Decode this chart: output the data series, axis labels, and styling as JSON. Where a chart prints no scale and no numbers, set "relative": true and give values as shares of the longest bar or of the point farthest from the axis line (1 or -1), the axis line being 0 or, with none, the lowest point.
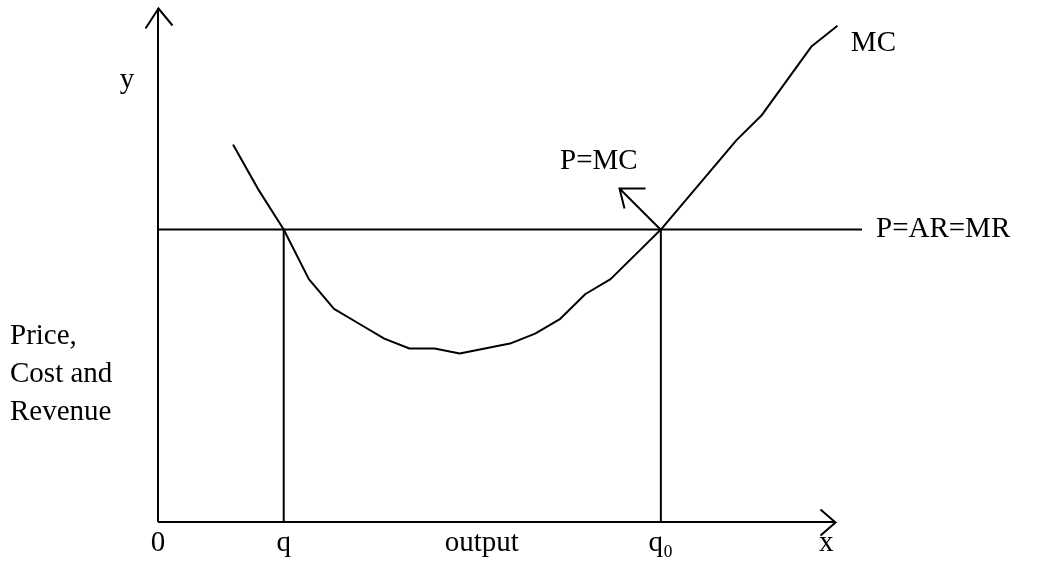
{
  "chart_data": {
    "type": "line",
    "relative": true,
    "xlabel": "output",
    "ylabel": "Price, Cost and Revenue",
    "categories": [
      "0",
      null,
      null,
      null,
      null,
      "q",
      null,
      null,
      null,
      null,
      null,
      null,
      null,
      null,
      null,
      null,
      null,
      null,
      null,
      null,
      "q₀",
      null,
      null,
      null,
      null,
      null,
      null,
      null,
      null
    ],
    "series": [
      {
        "name": "MC",
        "color": "#000000",
        "values": [
          null,
          null,
          null,
          0.76,
          0.67,
          0.59,
          0.49,
          0.43,
          0.4,
          0.37,
          0.35,
          0.35,
          0.34,
          0.35,
          0.36,
          0.38,
          0.41,
          0.46,
          0.49,
          0.54,
          0.59,
          0.65,
          0.71,
          0.77,
          0.82,
          0.89,
          0.96,
          1,
          null
        ]
      },
      {
        "name": "P=AR=MR",
        "color": "#000000",
        "values": [
          0.59,
          0.59,
          0.59,
          0.59,
          0.59,
          0.59,
          0.59,
          0.59,
          0.59,
          0.59,
          0.59,
          0.59,
          0.59,
          0.59,
          0.59,
          0.59,
          0.59,
          0.59,
          0.59,
          0.59,
          0.59,
          0.59,
          0.59,
          0.59,
          0.59,
          0.59,
          0.59,
          0.59,
          0.59
        ]
      },
      {
        "color": "#000000",
        "x": [
          "q",
          "q"
        ],
        "values": [
          0,
          0.59
        ]
      },
      {
        "color": "#000000",
        "x": [
          "q₀",
          "q₀"
        ],
        "values": [
          0,
          0.59
        ]
      }
    ],
    "annotations": [
      "y",
      "x",
      {
        "text": "P=MC",
        "x": "q₀",
        "y": 0.59
      }
    ]
  }
}
